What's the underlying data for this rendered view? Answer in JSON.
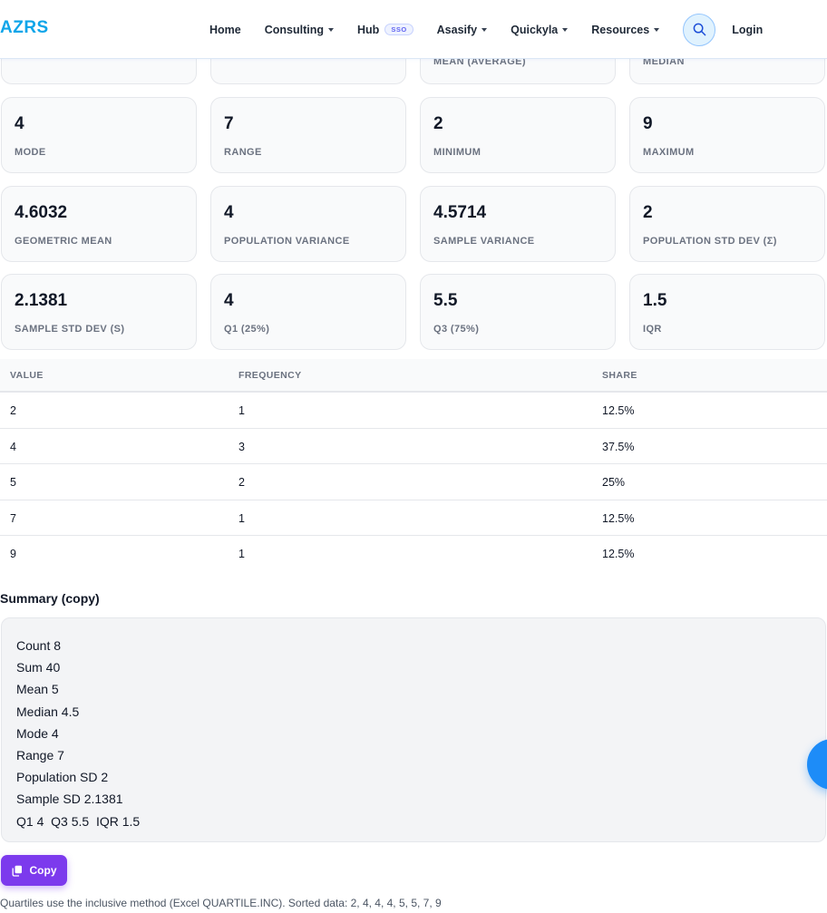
{
  "header": {
    "logo": "AZRS",
    "nav": [
      {
        "label": "Home",
        "dropdown": false
      },
      {
        "label": "Consulting",
        "dropdown": true
      },
      {
        "label": "Hub",
        "badge": "SSO",
        "dropdown": false
      },
      {
        "label": "Asasify",
        "dropdown": true
      },
      {
        "label": "Quickyla",
        "dropdown": true
      },
      {
        "label": "Resources",
        "dropdown": true
      }
    ],
    "search_icon": "search-icon",
    "login": "Login"
  },
  "stats_partial": [
    {
      "label": ""
    },
    {
      "label": ""
    },
    {
      "label": "MEAN (AVERAGE)"
    },
    {
      "label": "MEDIAN"
    }
  ],
  "stats": [
    {
      "value": "4",
      "label": "MODE"
    },
    {
      "value": "7",
      "label": "RANGE"
    },
    {
      "value": "2",
      "label": "MINIMUM"
    },
    {
      "value": "9",
      "label": "MAXIMUM"
    },
    {
      "value": "4.6032",
      "label": "GEOMETRIC MEAN"
    },
    {
      "value": "4",
      "label": "POPULATION VARIANCE"
    },
    {
      "value": "4.5714",
      "label": "SAMPLE VARIANCE"
    },
    {
      "value": "2",
      "label": "POPULATION STD DEV (Σ)"
    },
    {
      "value": "2.1381",
      "label": "SAMPLE STD DEV (S)"
    },
    {
      "value": "4",
      "label": "Q1 (25%)"
    },
    {
      "value": "5.5",
      "label": "Q3 (75%)"
    },
    {
      "value": "1.5",
      "label": "IQR"
    }
  ],
  "table": {
    "headers": [
      "VALUE",
      "FREQUENCY",
      "SHARE"
    ],
    "rows": [
      [
        "2",
        "1",
        "12.5%"
      ],
      [
        "4",
        "3",
        "37.5%"
      ],
      [
        "5",
        "2",
        "25%"
      ],
      [
        "7",
        "1",
        "12.5%"
      ],
      [
        "9",
        "1",
        "12.5%"
      ]
    ]
  },
  "summary": {
    "title": "Summary (copy)",
    "lines": [
      "Count 8",
      "Sum 40",
      "Mean 5",
      "Median 4.5",
      "Mode 4",
      "Range 7",
      "Population SD 2",
      "Sample SD 2.1381",
      "Q1 4  Q3 5.5  IQR 1.5"
    ]
  },
  "copy_button": {
    "label": "Copy",
    "icon": "copy-icon"
  },
  "footnote": "Quartiles use the inclusive method (Excel QUARTILE.INC). Sorted data: 2, 4, 4, 4, 5, 5, 7, 9",
  "colors": {
    "accent": "#0ea5e9",
    "button": "#7c3aed",
    "fab": "#1d8cf8"
  }
}
